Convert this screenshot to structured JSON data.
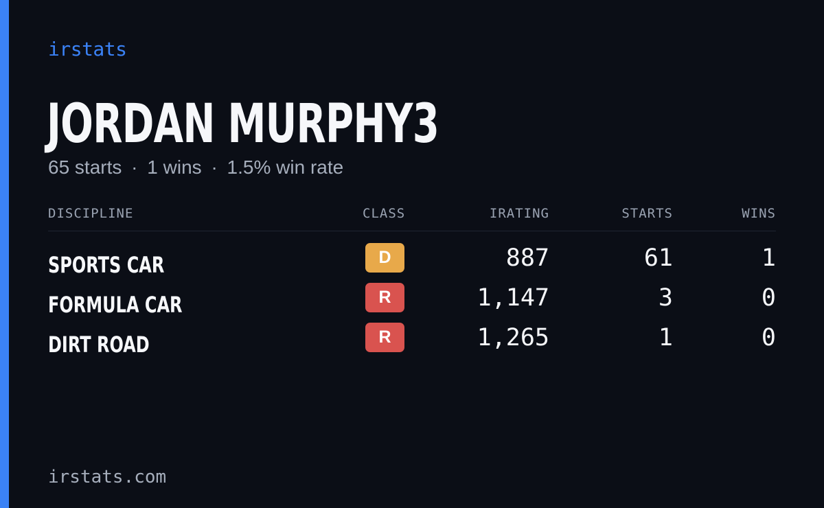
{
  "brand": "irstats",
  "driver": {
    "name": "JORDAN MURPHY3",
    "starts_text": "65 starts",
    "wins_text": "1 wins",
    "win_rate_text": "1.5% win rate",
    "separator": "·"
  },
  "table": {
    "headers": {
      "discipline": "DISCIPLINE",
      "class": "CLASS",
      "irating": "IRATING",
      "starts": "STARTS",
      "wins": "WINS"
    },
    "rows": [
      {
        "discipline": "SPORTS CAR",
        "class": "D",
        "class_color": "#e8a94a",
        "irating": "887",
        "starts": "61",
        "wins": "1"
      },
      {
        "discipline": "FORMULA CAR",
        "class": "R",
        "class_color": "#d9534f",
        "irating": "1,147",
        "starts": "3",
        "wins": "0"
      },
      {
        "discipline": "DIRT ROAD",
        "class": "R",
        "class_color": "#d9534f",
        "irating": "1,265",
        "starts": "1",
        "wins": "0"
      }
    ]
  },
  "footer": {
    "url": "irstats.com"
  },
  "colors": {
    "accent": "#3b82f6",
    "background": "#0b0e16"
  }
}
